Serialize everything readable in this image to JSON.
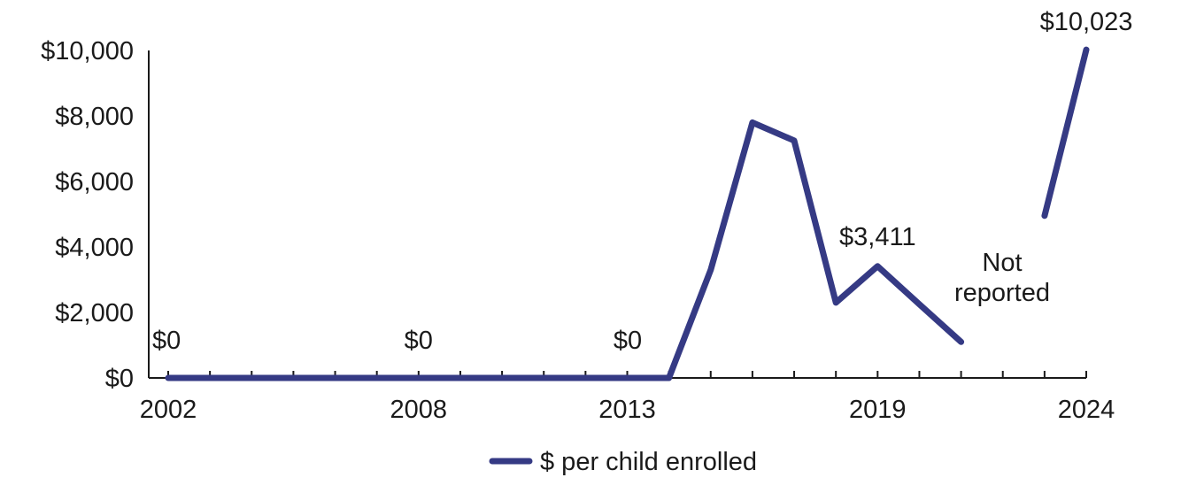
{
  "chart_data": {
    "type": "line",
    "x": [
      2002,
      2003,
      2004,
      2005,
      2006,
      2007,
      2008,
      2009,
      2010,
      2011,
      2012,
      2013,
      2014,
      2015,
      2016,
      2017,
      2018,
      2019,
      2020,
      2021,
      2022,
      2023,
      2024
    ],
    "x_tick_labels": [
      "2002",
      "2008",
      "2013",
      "2019",
      "2024"
    ],
    "series": [
      {
        "name": "$ per child enrolled",
        "color": "#353a84",
        "values": [
          0,
          0,
          0,
          0,
          0,
          0,
          0,
          0,
          0,
          0,
          0,
          0,
          0,
          3300,
          7800,
          7250,
          2300,
          3411,
          2250,
          1100,
          null,
          4950,
          10023
        ]
      }
    ],
    "ylim": [
      0,
      10000
    ],
    "y_tick_labels": [
      "$0",
      "$2,000",
      "$4,000",
      "$6,000",
      "$8,000",
      "$10,000"
    ],
    "data_labels": [
      {
        "x": 2002,
        "text": "$0"
      },
      {
        "x": 2008,
        "text": "$0"
      },
      {
        "x": 2013,
        "text": "$0"
      },
      {
        "x": 2019,
        "text": "$3,411"
      },
      {
        "x": 2024,
        "text": "$10,023"
      }
    ],
    "annotations": [
      {
        "x": 2022,
        "lines": [
          "Not",
          "reported"
        ]
      }
    ],
    "title": "",
    "xlabel": "",
    "ylabel": "",
    "grid": false,
    "legend_position": "bottom-center"
  }
}
